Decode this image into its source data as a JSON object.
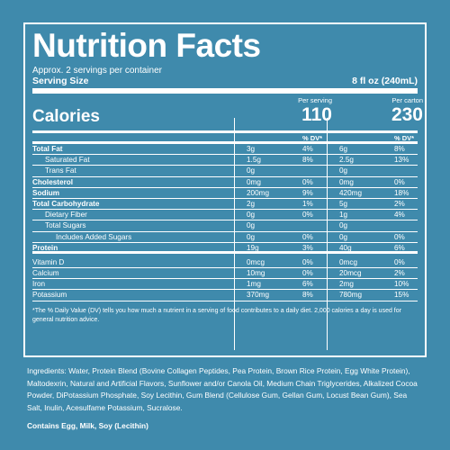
{
  "title": "Nutrition Facts",
  "servings_per_container": "Approx. 2 servings per container",
  "serving_size_label": "Serving Size",
  "serving_size_value": "8 fl oz (240mL)",
  "calories_label": "Calories",
  "per_serving_label": "Per serving",
  "per_carton_label": "Per carton",
  "calories_serving": "110",
  "calories_carton": "230",
  "dv_header": "% DV*",
  "rows": [
    {
      "name": "Total Fat",
      "s_amt": "3g",
      "s_dv": "4%",
      "c_amt": "6g",
      "c_dv": "8%"
    },
    {
      "name": "Saturated Fat",
      "s_amt": "1.5g",
      "s_dv": "8%",
      "c_amt": "2.5g",
      "c_dv": "13%"
    },
    {
      "name": "Trans Fat",
      "s_amt": "0g",
      "s_dv": "",
      "c_amt": "0g",
      "c_dv": ""
    },
    {
      "name": "Cholesterol",
      "s_amt": "0mg",
      "s_dv": "0%",
      "c_amt": "0mg",
      "c_dv": "0%"
    },
    {
      "name": "Sodium",
      "s_amt": "200mg",
      "s_dv": "9%",
      "c_amt": "420mg",
      "c_dv": "18%"
    },
    {
      "name": "Total Carbohydrate",
      "s_amt": "2g",
      "s_dv": "1%",
      "c_amt": "5g",
      "c_dv": "2%"
    },
    {
      "name": "Dietary Fiber",
      "s_amt": "0g",
      "s_dv": "0%",
      "c_amt": "1g",
      "c_dv": "4%"
    },
    {
      "name": "Total Sugars",
      "s_amt": "0g",
      "s_dv": "",
      "c_amt": "0g",
      "c_dv": ""
    },
    {
      "name": "Includes Added Sugars",
      "s_amt": "0g",
      "s_dv": "0%",
      "c_amt": "0g",
      "c_dv": "0%"
    },
    {
      "name": "Protein",
      "s_amt": "19g",
      "s_dv": "3%",
      "c_amt": "40g",
      "c_dv": "6%"
    },
    {
      "name": "Vitamin D",
      "s_amt": "0mcg",
      "s_dv": "0%",
      "c_amt": "0mcg",
      "c_dv": "0%"
    },
    {
      "name": "Calcium",
      "s_amt": "10mg",
      "s_dv": "0%",
      "c_amt": "20mcg",
      "c_dv": "2%"
    },
    {
      "name": "Iron",
      "s_amt": "1mg",
      "s_dv": "6%",
      "c_amt": "2mg",
      "c_dv": "10%"
    },
    {
      "name": "Potassium",
      "s_amt": "370mg",
      "s_dv": "8%",
      "c_amt": "780mg",
      "c_dv": "15%"
    }
  ],
  "footnote": "*The % Daily Value (DV) tells you how much a nutrient in a serving of food contributes to a daily diet. 2,000 calories a day is used for general nutrition advice.",
  "ingredients": "Ingredients: Water, Protein Blend (Bovine Collagen Peptides, Pea Protein, Brown Rice Protein, Egg White Protein), Maltodexrin, Natural and Artificial Flavors, Sunflower and/or Canola Oil, Medium Chain Triglycerides, Alkalized Cocoa Powder, DiPotassium Phosphate, Soy Lecithin, Gum Blend (Cellulose Gum, Gellan Gum, Locust Bean Gum), Sea Salt, Inulin, Acesulfame Potassium, Sucralose.",
  "contains": "Contains Egg, Milk, Soy (Lecithin)",
  "colors": {
    "background": "#3f8aac",
    "text": "#ffffff"
  }
}
